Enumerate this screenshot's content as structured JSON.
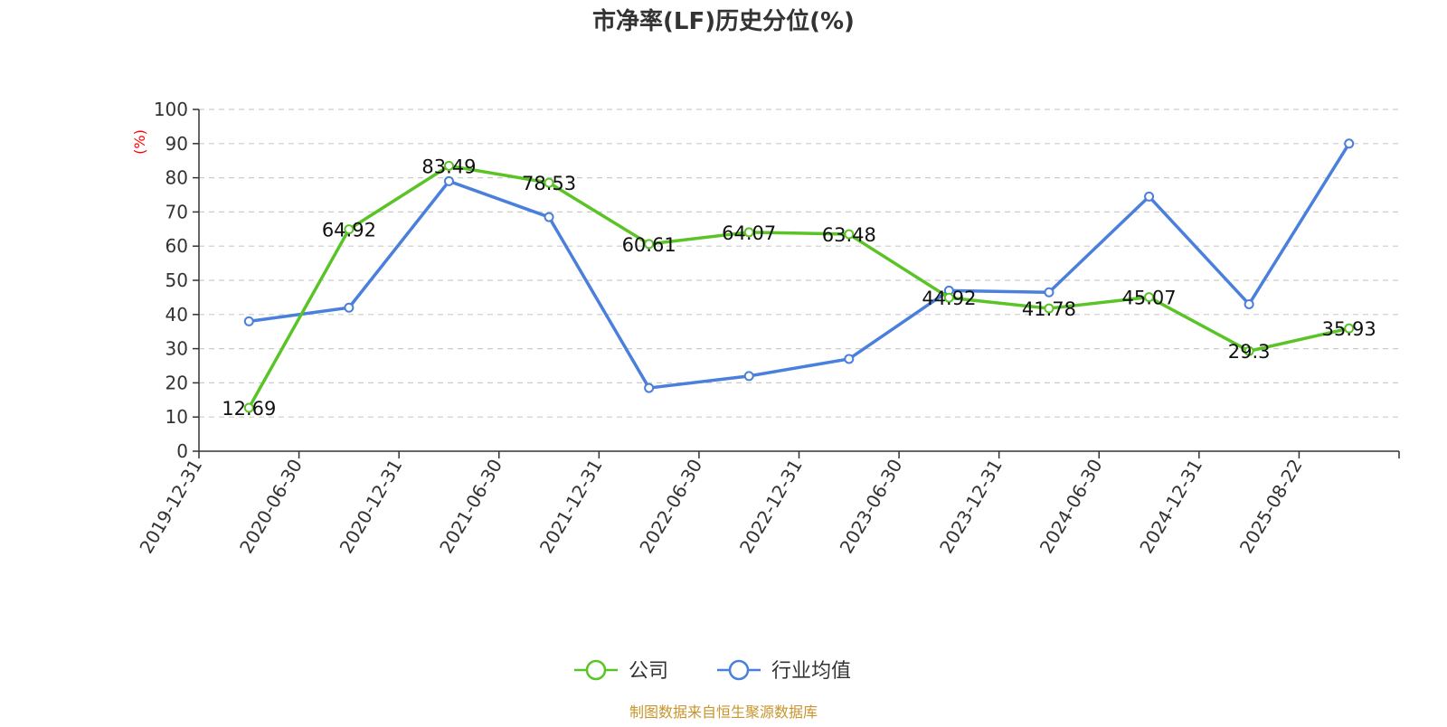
{
  "chart_data": {
    "type": "line",
    "title": "市净率(LF)历史分位(%)",
    "ylabel": "(%)",
    "ylim": [
      0,
      100
    ],
    "y_ticks": [
      0,
      10,
      20,
      30,
      40,
      50,
      60,
      70,
      80,
      90,
      100
    ],
    "grid": true,
    "legend_position": "bottom",
    "categories": [
      "2019-12-31",
      "2020-06-30",
      "2020-12-31",
      "2021-06-30",
      "2021-12-31",
      "2022-06-30",
      "2022-12-31",
      "2023-06-30",
      "2023-12-31",
      "2024-06-30",
      "2024-12-31",
      "2025-08-22"
    ],
    "series": [
      {
        "name": "公司",
        "color": "#5ac427",
        "show_labels": true,
        "values": [
          12.69,
          64.92,
          83.49,
          78.53,
          60.61,
          64.07,
          63.48,
          44.92,
          41.78,
          45.07,
          29.3,
          35.93
        ],
        "labels": [
          "12.69",
          "64.92",
          "83.49",
          "78.53",
          "60.61",
          "64.07",
          "63.48",
          "44.92",
          "41.78",
          "45.07",
          "29.3",
          "35.93"
        ]
      },
      {
        "name": "行业均值",
        "color": "#4a7fdb",
        "show_labels": false,
        "values": [
          38,
          42,
          79,
          68.5,
          18.5,
          22,
          27,
          47,
          46.5,
          74.5,
          43,
          90
        ]
      }
    ]
  },
  "footer": {
    "source": "制图数据来自恒生聚源数据库"
  }
}
